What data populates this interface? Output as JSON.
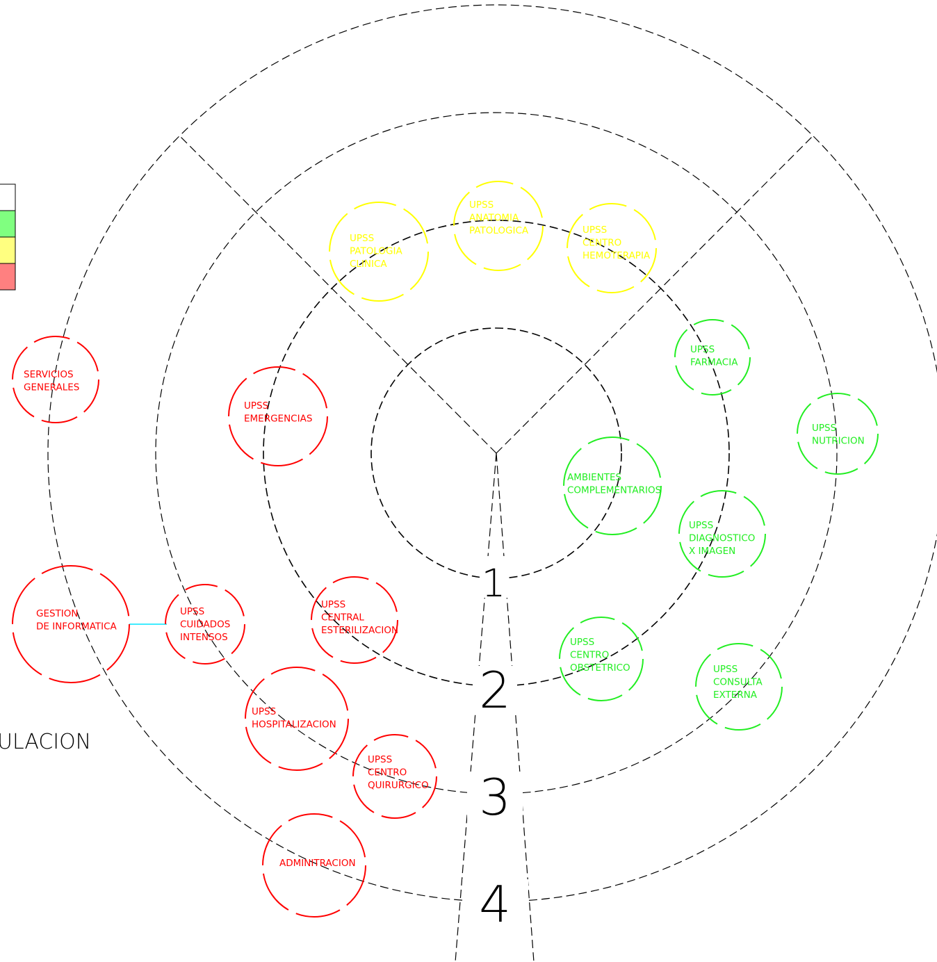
{
  "nodes": [
    {
      "lines": [
        "UPSS",
        "PATOLOGIA",
        "CLINICA"
      ],
      "color": "#ffff00"
    },
    {
      "lines": [
        "UPSS",
        "ANATOMIA",
        "PATOLOGICA"
      ],
      "color": "#ffff00"
    },
    {
      "lines": [
        "UPSS",
        "CENTRO",
        "HEMOTERAPIA"
      ],
      "color": "#ffff00"
    },
    {
      "lines": [
        "UPSS",
        "FARMACIA"
      ],
      "color": "#22ee22"
    },
    {
      "lines": [
        "UPSS",
        "NUTRICION"
      ],
      "color": "#22ee22"
    },
    {
      "lines": [
        "AMBIENTES",
        "COMPLEMENTARIOS"
      ],
      "color": "#22ee22"
    },
    {
      "lines": [
        "UPSS",
        "DIAGNOSTICO",
        "X IMAGEN"
      ],
      "color": "#22ee22"
    },
    {
      "lines": [
        "UPSS",
        "CENTRO",
        "OBSTETRICO"
      ],
      "color": "#22ee22"
    },
    {
      "lines": [
        "UPSS",
        "CONSULTA",
        "EXTERNA"
      ],
      "color": "#22ee22"
    },
    {
      "lines": [
        "SERVICIOS",
        "GENERALES"
      ],
      "color": "#ff0000"
    },
    {
      "lines": [
        "UPSS",
        "EMERGENCIAS"
      ],
      "color": "#ff0000"
    },
    {
      "lines": [
        "GESTION",
        "DE INFORMATICA"
      ],
      "color": "#ff0000"
    },
    {
      "lines": [
        "UPSS",
        "CUIDADOS",
        "INTENSOS"
      ],
      "color": "#ff0000"
    },
    {
      "lines": [
        "UPSS",
        "CENTRAL",
        "ESTERILIZACION"
      ],
      "color": "#ff0000"
    },
    {
      "lines": [
        "UPSS",
        "HOSPITALIZACION"
      ],
      "color": "#ff0000"
    },
    {
      "lines": [
        "UPSS",
        "CENTRO",
        "QUIRURGICO"
      ],
      "color": "#ff0000"
    },
    {
      "lines": [
        "ADMINITRACION"
      ],
      "color": "#ff0000"
    }
  ],
  "rings": [
    "1",
    "2",
    "3",
    "4"
  ],
  "caption": "ULACION"
}
